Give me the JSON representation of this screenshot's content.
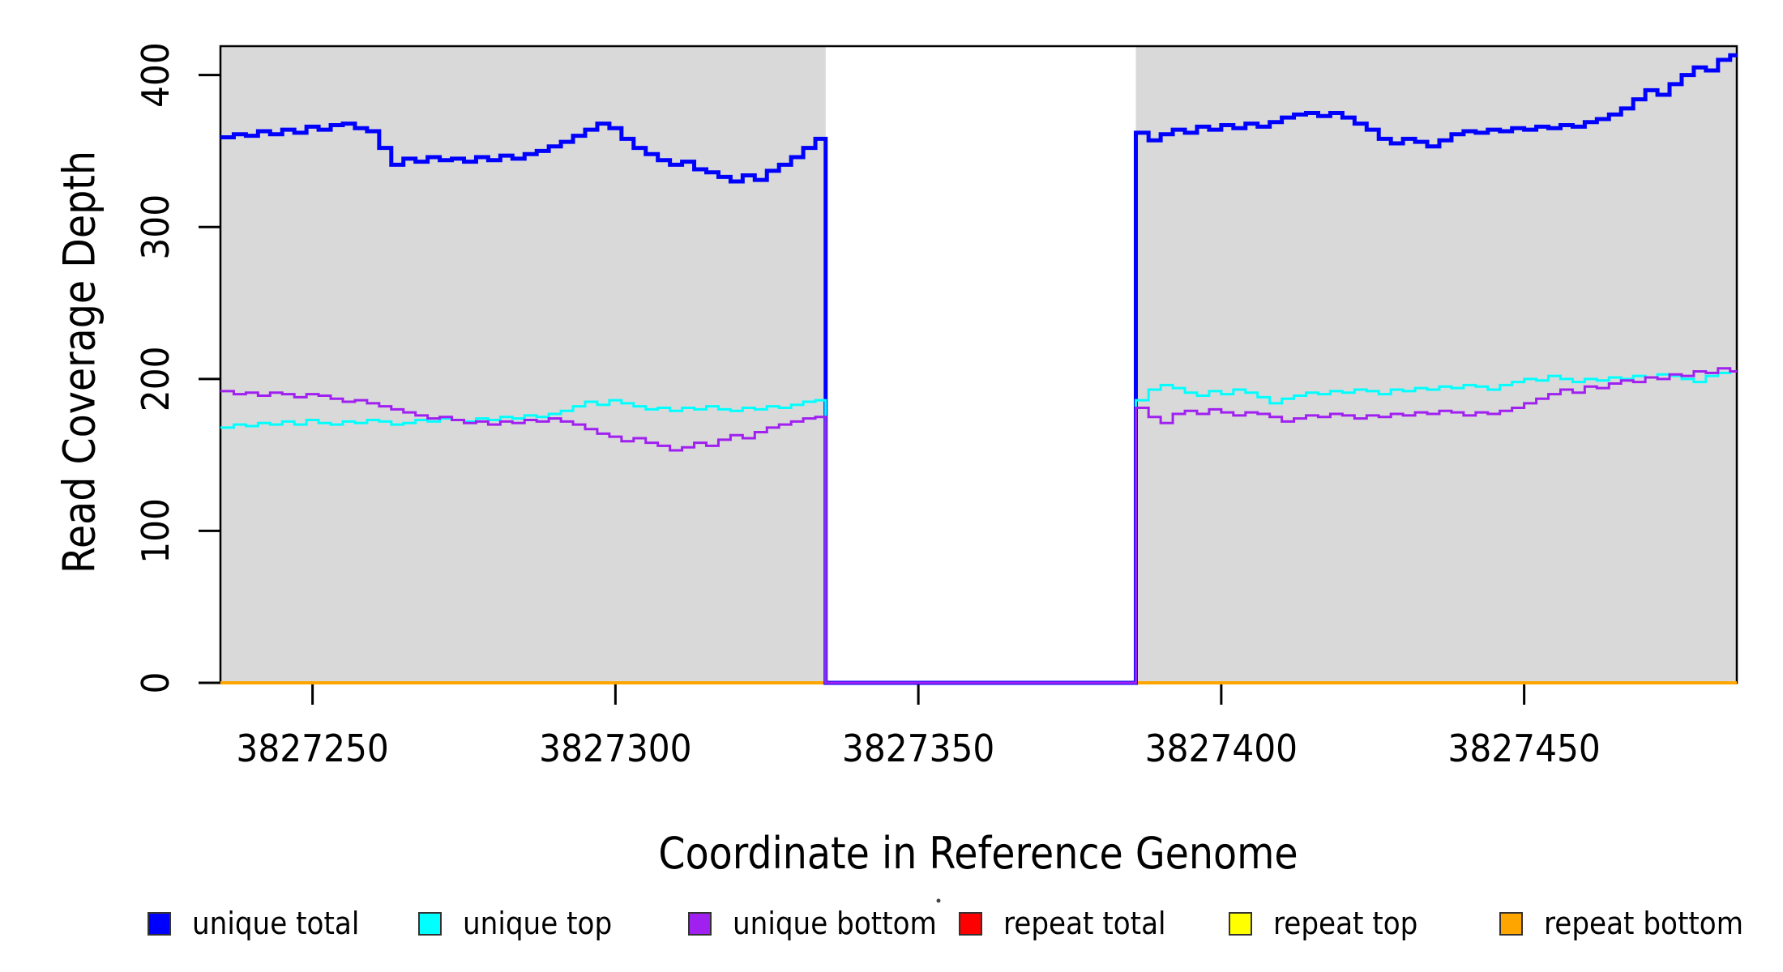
{
  "chart_data": {
    "type": "line",
    "step": true,
    "title": "",
    "xlabel": "Coordinate in Reference Genome",
    "ylabel": "Read Coverage Depth",
    "xlim": [
      3827234.8,
      3827485.1
    ],
    "ylim": [
      0,
      419
    ],
    "x_ticks": [
      3827250,
      3827300,
      3827350,
      3827400,
      3827450
    ],
    "y_ticks": [
      0,
      100,
      200,
      300,
      400
    ],
    "grid": false,
    "shade_color": "#D9D9D9",
    "shaded_regions": [
      {
        "x0": 3827234.8,
        "x1": 3827334.7
      },
      {
        "x0": 3827385.9,
        "x1": 3827485.1
      }
    ],
    "gap": {
      "x0": 3827334.7,
      "x1": 3827385.9,
      "note": "all unique series drop to 0 in this unshaded interval"
    },
    "series": [
      {
        "name": "repeat total",
        "color": "#FF0000",
        "lw": 3,
        "constant": 0,
        "span": "full"
      },
      {
        "name": "repeat top",
        "color": "#FFFF00",
        "lw": 3,
        "constant": 0,
        "span": "full"
      },
      {
        "name": "repeat bottom",
        "color": "#FFA500",
        "lw": 4,
        "constant": 0,
        "span": "regions"
      },
      {
        "name": "unique total",
        "color": "#0000FF",
        "lw": 5,
        "gap_value": 0,
        "left": {
          "start": 3827235,
          "step": 2,
          "values": [
            359,
            361,
            360,
            363,
            361,
            364,
            362,
            366,
            364,
            367,
            368,
            365,
            363,
            352,
            341,
            345,
            343,
            346,
            344,
            345,
            343,
            346,
            344,
            347,
            345,
            348,
            350,
            353,
            356,
            360,
            364,
            368,
            365,
            358,
            352,
            348,
            344,
            341,
            343,
            338,
            336,
            333,
            330,
            334,
            331,
            337,
            341,
            346,
            352,
            358
          ]
        },
        "right": {
          "start": 3827386,
          "step": 2,
          "values": [
            362,
            357,
            361,
            364,
            362,
            366,
            364,
            367,
            365,
            368,
            366,
            369,
            372,
            374,
            375,
            373,
            375,
            372,
            368,
            364,
            358,
            355,
            358,
            356,
            353,
            357,
            361,
            363,
            362,
            364,
            363,
            365,
            364,
            366,
            365,
            367,
            366,
            369,
            371,
            374,
            378,
            384,
            390,
            387,
            394,
            400,
            405,
            403,
            410,
            413
          ]
        }
      },
      {
        "name": "unique top",
        "color": "#00FFFF",
        "lw": 3,
        "gap_value": 0,
        "left": {
          "start": 3827235,
          "step": 2,
          "values": [
            168,
            170,
            169,
            171,
            170,
            172,
            170,
            173,
            171,
            170,
            172,
            171,
            173,
            172,
            170,
            171,
            173,
            172,
            174,
            173,
            172,
            174,
            173,
            175,
            174,
            176,
            175,
            177,
            179,
            182,
            185,
            183,
            186,
            184,
            182,
            180,
            181,
            179,
            181,
            180,
            182,
            180,
            179,
            181,
            180,
            182,
            181,
            183,
            185,
            186
          ]
        },
        "right": {
          "start": 3827386,
          "step": 2,
          "values": [
            186,
            193,
            196,
            194,
            191,
            189,
            192,
            190,
            193,
            191,
            188,
            184,
            187,
            189,
            191,
            190,
            192,
            191,
            193,
            192,
            190,
            193,
            192,
            194,
            193,
            195,
            194,
            196,
            195,
            193,
            196,
            198,
            200,
            199,
            202,
            200,
            198,
            200,
            199,
            201,
            200,
            202,
            201,
            203,
            202,
            200,
            198,
            202,
            204,
            205
          ]
        }
      },
      {
        "name": "unique bottom",
        "color": "#A020F0",
        "lw": 3,
        "gap_value": 0,
        "left": {
          "start": 3827235,
          "step": 2,
          "values": [
            192,
            190,
            191,
            189,
            191,
            190,
            188,
            190,
            189,
            187,
            185,
            186,
            184,
            182,
            180,
            178,
            176,
            174,
            175,
            173,
            171,
            172,
            170,
            172,
            171,
            173,
            172,
            174,
            172,
            170,
            167,
            164,
            162,
            159,
            161,
            158,
            156,
            153,
            155,
            158,
            156,
            160,
            163,
            161,
            165,
            168,
            170,
            172,
            174,
            175
          ]
        },
        "right": {
          "start": 3827386,
          "step": 2,
          "values": [
            181,
            175,
            171,
            177,
            179,
            177,
            180,
            178,
            176,
            178,
            177,
            175,
            172,
            174,
            176,
            175,
            177,
            176,
            174,
            176,
            175,
            177,
            176,
            178,
            177,
            179,
            178,
            176,
            178,
            177,
            179,
            181,
            184,
            187,
            190,
            193,
            191,
            195,
            194,
            197,
            199,
            198,
            201,
            200,
            203,
            202,
            205,
            204,
            207,
            205
          ]
        }
      }
    ],
    "legend": [
      {
        "label": "unique total",
        "color": "#0000FF"
      },
      {
        "label": "unique top",
        "color": "#00FFFF"
      },
      {
        "label": "unique bottom",
        "color": "#A020F0"
      },
      {
        "label": "repeat total",
        "color": "#FF0000"
      },
      {
        "label": "repeat top",
        "color": "#FFFF00"
      },
      {
        "label": "repeat bottom",
        "color": "#FFA500"
      }
    ],
    "legend_position": "bottom"
  }
}
